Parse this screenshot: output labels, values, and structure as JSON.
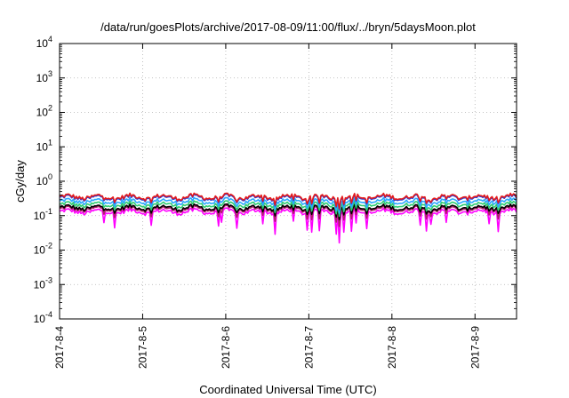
{
  "chart_data": {
    "type": "line",
    "title": "/data/run/goesPlots/archive/2017-08-09/11:00/flux/../bryn/5daysMoon.plot",
    "xlabel": "Coordinated Universal Time (UTC)",
    "ylabel": "cGy/day",
    "y_scale": "log",
    "ylim": [
      0.0001,
      10000
    ],
    "y_ticks": [
      {
        "value": 0.0001,
        "base": "10",
        "exp": "-4"
      },
      {
        "value": 0.001,
        "base": "10",
        "exp": "-3"
      },
      {
        "value": 0.01,
        "base": "10",
        "exp": "-2"
      },
      {
        "value": 0.1,
        "base": "10",
        "exp": "-1"
      },
      {
        "value": 1,
        "base": "10",
        "exp": "0"
      },
      {
        "value": 10,
        "base": "10",
        "exp": "1"
      },
      {
        "value": 100,
        "base": "10",
        "exp": "2"
      },
      {
        "value": 1000,
        "base": "10",
        "exp": "3"
      },
      {
        "value": 10000,
        "base": "10",
        "exp": "4"
      }
    ],
    "xlim": [
      "2017-08-04T00:00",
      "2017-08-09T12:00"
    ],
    "x_ticks": [
      "2017-8-4",
      "2017-8-5",
      "2017-8-6",
      "2017-8-7",
      "2017-8-8",
      "2017-8-9"
    ],
    "x_tick_dates": [
      "2017-08-04T00:00",
      "2017-08-05T00:00",
      "2017-08-06T00:00",
      "2017-08-07T00:00",
      "2017-08-08T00:00",
      "2017-08-09T00:00"
    ],
    "grid": true,
    "legend": "none",
    "series": [
      {
        "color": "#e41a1c",
        "typical_value": 0.35
      },
      {
        "color": "#1f3fdd",
        "typical_value": 0.33
      },
      {
        "color": "#2aa8ff",
        "typical_value": 0.26
      },
      {
        "color": "#2ecc71",
        "typical_value": 0.21
      },
      {
        "color": "#000000",
        "typical_value": 0.17
      },
      {
        "color": "#b0206a",
        "typical_value": 0.155
      },
      {
        "color": "#ff00ff",
        "typical_value": 0.13
      }
    ]
  }
}
